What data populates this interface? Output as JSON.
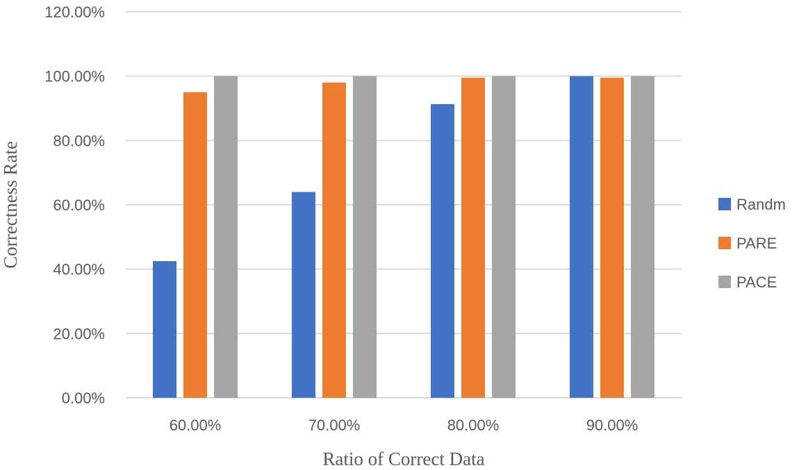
{
  "chart_data": {
    "type": "bar",
    "title": "",
    "xlabel": "Ratio of Correct Data",
    "ylabel": "Correctness Rate",
    "categories": [
      "60.00%",
      "70.00%",
      "80.00%",
      "90.00%"
    ],
    "ylim": [
      0,
      1.2
    ],
    "yticks": [
      0,
      0.2,
      0.4,
      0.6,
      0.8,
      1.0,
      1.2
    ],
    "ytick_labels": [
      "0.00%",
      "20.00%",
      "40.00%",
      "60.00%",
      "80.00%",
      "100.00%",
      "120.00%"
    ],
    "grid": true,
    "legend_position": "right",
    "series": [
      {
        "name": "Randm",
        "color": "#4472C4",
        "values": [
          0.425,
          0.64,
          0.913,
          1.0
        ]
      },
      {
        "name": "PARE",
        "color": "#ED7D31",
        "values": [
          0.95,
          0.98,
          0.995,
          0.995
        ]
      },
      {
        "name": "PACE",
        "color": "#A5A5A5",
        "values": [
          1.0,
          1.0,
          1.0,
          1.0
        ]
      }
    ]
  }
}
